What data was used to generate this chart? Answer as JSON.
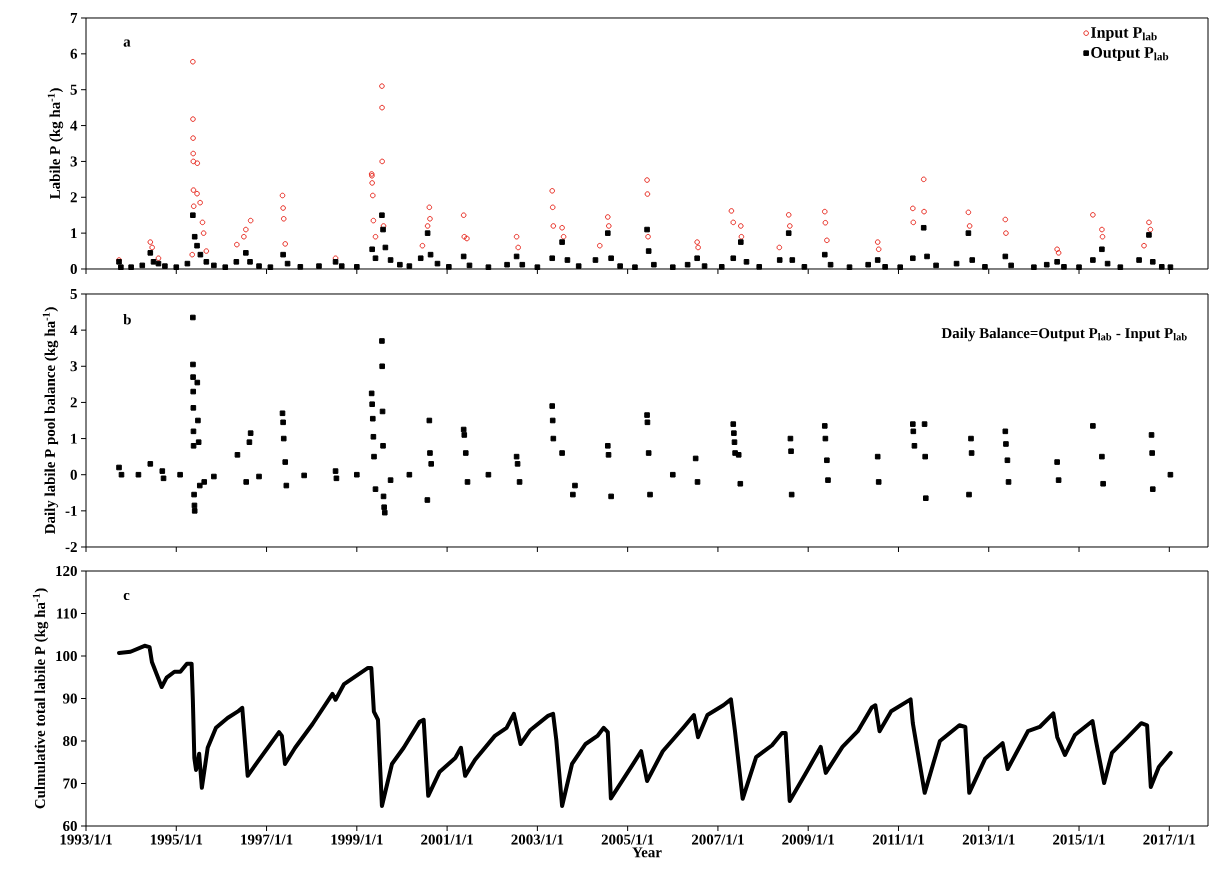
{
  "chart_data": [
    {
      "type": "scatter",
      "ylabel": "Labile P (kg ha$^{-1}$)",
      "annotations": [
        "a"
      ],
      "legend": "top right",
      "tick_labels": "y",
      "xlim": [
        "1993-01-01",
        "2017-11-10"
      ],
      "ylim": [
        0,
        7
      ],
      "yticks": [
        0,
        1,
        2,
        3,
        4,
        5,
        6,
        7
      ],
      "xticks": [
        {
          "value": "1993-01-01",
          "label": null
        },
        {
          "value": "1995-01-01",
          "label": null
        },
        {
          "value": "1997-01-01",
          "label": null
        },
        {
          "value": "1999-01-01",
          "label": null
        },
        {
          "value": "2001-01-01",
          "label": null
        },
        {
          "value": "2003-01-01",
          "label": null
        },
        {
          "value": "2005-01-01",
          "label": null
        },
        {
          "value": "2007-01-01",
          "label": null
        },
        {
          "value": "2009-01-01",
          "label": null
        },
        {
          "value": "2011-01-01",
          "label": null
        },
        {
          "value": "2013-01-01",
          "label": null
        },
        {
          "value": "2015-01-01",
          "label": null
        },
        {
          "value": "2017-01-01",
          "label": null
        }
      ],
      "series": [
        {
          "name": "Input P$_{lab}$",
          "color": "#e8281e",
          "marker": "circle",
          "x": [
            "1993-09-25",
            "1994-06-05",
            "1994-06-20",
            "1994-08-10",
            "1995-05-10",
            "1995-05-15",
            "1995-05-16",
            "1995-05-17",
            "1995-05-18",
            "1995-05-19",
            "1995-05-20",
            "1995-05-22",
            "1995-06-18",
            "1995-06-20",
            "1995-07-13",
            "1995-08-01",
            "1995-08-10",
            "1995-09-01",
            "1996-05-05",
            "1996-07-01",
            "1996-07-17",
            "1996-08-25",
            "1997-05-10",
            "1997-05-15",
            "1997-05-20",
            "1997-06-01",
            "1998-07-13",
            "1999-05-01",
            "1999-05-03",
            "1999-05-05",
            "1999-05-10",
            "1999-05-15",
            "1999-06-01",
            "1999-07-23",
            "1999-07-24",
            "1999-07-25",
            "1999-08-05",
            "2000-06-15",
            "2000-07-27",
            "2000-08-10",
            "2000-08-15",
            "2001-05-15",
            "2001-05-20",
            "2001-06-10",
            "2002-07-17",
            "2002-07-30",
            "2003-05-01",
            "2003-05-05",
            "2003-05-10",
            "2003-07-20",
            "2003-08-01",
            "2004-05-20",
            "2004-07-24",
            "2004-08-01",
            "2005-06-07",
            "2005-06-10",
            "2005-06-15",
            "2006-07-17",
            "2006-07-25",
            "2007-04-20",
            "2007-05-05",
            "2007-07-05",
            "2007-07-10",
            "2008-05-12",
            "2008-07-27",
            "2008-08-05",
            "2009-05-15",
            "2009-05-20",
            "2009-06-01",
            "2010-07-17",
            "2010-07-25",
            "2011-04-27",
            "2011-05-01",
            "2011-07-24",
            "2011-07-27",
            "2012-07-20",
            "2012-07-30",
            "2013-05-15",
            "2013-05-20",
            "2014-07-08",
            "2014-07-20",
            "2015-04-23",
            "2015-07-05",
            "2015-07-10",
            "2016-06-10",
            "2016-07-20",
            "2016-08-01"
          ],
          "values": [
            0.25,
            0.75,
            0.6,
            0.3,
            0.4,
            5.78,
            4.18,
            3.65,
            3.22,
            3.0,
            2.2,
            1.75,
            2.1,
            2.95,
            1.85,
            1.3,
            1.0,
            0.5,
            0.68,
            0.9,
            1.1,
            1.35,
            2.05,
            1.7,
            1.4,
            0.7,
            0.3,
            2.65,
            2.6,
            2.4,
            2.05,
            1.35,
            0.9,
            5.1,
            4.5,
            3.0,
            1.2,
            0.65,
            1.2,
            1.72,
            1.4,
            1.5,
            0.9,
            0.85,
            0.9,
            0.6,
            2.18,
            1.72,
            1.2,
            1.15,
            0.9,
            0.65,
            1.45,
            1.2,
            2.48,
            2.09,
            0.9,
            0.75,
            0.6,
            1.62,
            1.3,
            1.2,
            0.9,
            0.6,
            1.51,
            1.2,
            1.6,
            1.29,
            0.8,
            0.75,
            0.55,
            1.69,
            1.3,
            2.5,
            1.6,
            1.58,
            1.2,
            1.38,
            1.0,
            0.55,
            0.45,
            1.51,
            1.1,
            0.9,
            0.65,
            1.3,
            1.1
          ]
        },
        {
          "name": "Output P$_{lab}$",
          "color": "#000000",
          "marker": "square",
          "x": [
            "1993-09-25",
            "1993-10-10",
            "1994-01-01",
            "1994-04-01",
            "1994-06-05",
            "1994-07-01",
            "1994-08-10",
            "1994-10-01",
            "1995-01-01",
            "1995-04-01",
            "1995-05-15",
            "1995-05-30",
            "1995-06-18",
            "1995-07-15",
            "1995-09-01",
            "1995-11-01",
            "1996-02-01",
            "1996-05-01",
            "1996-07-17",
            "1996-08-20",
            "1996-11-01",
            "1997-02-01",
            "1997-05-15",
            "1997-06-20",
            "1997-10-01",
            "1998-03-01",
            "1998-07-13",
            "1998-09-01",
            "1999-01-01",
            "1999-05-05",
            "1999-06-01",
            "1999-07-23",
            "1999-08-01",
            "1999-08-20",
            "1999-10-01",
            "1999-12-15",
            "2000-03-01",
            "2000-06-01",
            "2000-07-27",
            "2000-08-20",
            "2000-10-15",
            "2001-01-15",
            "2001-05-15",
            "2001-07-01",
            "2001-12-01",
            "2002-05-01",
            "2002-07-17",
            "2002-09-01",
            "2003-01-01",
            "2003-05-01",
            "2003-07-20",
            "2003-09-01",
            "2003-12-01",
            "2004-04-15",
            "2004-07-24",
            "2004-08-20",
            "2004-11-01",
            "2005-03-01",
            "2005-06-07",
            "2005-06-20",
            "2005-08-01",
            "2006-01-01",
            "2006-05-01",
            "2006-07-17",
            "2006-09-15",
            "2007-02-01",
            "2007-05-05",
            "2007-07-05",
            "2007-08-20",
            "2007-12-01",
            "2008-05-15",
            "2008-07-27",
            "2008-08-25",
            "2008-12-01",
            "2009-05-15",
            "2009-07-01",
            "2009-12-01",
            "2010-05-01",
            "2010-07-17",
            "2010-09-15",
            "2011-01-15",
            "2011-04-27",
            "2011-07-24",
            "2011-08-20",
            "2011-11-01",
            "2012-04-15",
            "2012-07-20",
            "2012-08-20",
            "2012-12-01",
            "2013-05-15",
            "2013-07-01",
            "2014-01-01",
            "2014-04-15",
            "2014-07-08",
            "2014-09-01",
            "2015-01-01",
            "2015-04-23",
            "2015-07-05",
            "2015-08-20",
            "2015-12-01",
            "2016-05-01",
            "2016-07-20",
            "2016-08-20",
            "2016-11-01",
            "2017-01-10"
          ],
          "values": [
            0.2,
            0.05,
            0.05,
            0.1,
            0.45,
            0.2,
            0.15,
            0.08,
            0.05,
            0.15,
            1.5,
            0.9,
            0.65,
            0.4,
            0.2,
            0.1,
            0.05,
            0.2,
            0.45,
            0.2,
            0.08,
            0.05,
            0.4,
            0.15,
            0.06,
            0.08,
            0.2,
            0.08,
            0.06,
            0.55,
            0.3,
            1.5,
            1.1,
            0.6,
            0.25,
            0.12,
            0.08,
            0.3,
            1.0,
            0.4,
            0.15,
            0.06,
            0.35,
            0.1,
            0.05,
            0.12,
            0.35,
            0.12,
            0.05,
            0.3,
            0.75,
            0.25,
            0.08,
            0.25,
            1.0,
            0.3,
            0.08,
            0.05,
            1.1,
            0.5,
            0.12,
            0.05,
            0.12,
            0.3,
            0.08,
            0.06,
            0.3,
            0.75,
            0.2,
            0.06,
            0.25,
            1.0,
            0.25,
            0.06,
            0.4,
            0.12,
            0.05,
            0.12,
            0.25,
            0.06,
            0.05,
            0.3,
            1.15,
            0.35,
            0.1,
            0.15,
            1.0,
            0.25,
            0.06,
            0.35,
            0.1,
            0.05,
            0.12,
            0.2,
            0.06,
            0.05,
            0.25,
            0.55,
            0.15,
            0.05,
            0.25,
            0.95,
            0.2,
            0.06,
            0.05
          ]
        }
      ]
    },
    {
      "type": "scatter",
      "ylabel": "Daily labile P pool balance (kg ha$^{-1}$)",
      "annotations": [
        "b",
        "Daily Balance=Output P$_{lab}$ - Input P$_{lab}$"
      ],
      "tick_labels": "y",
      "color": "#000000",
      "marker": "square",
      "xlim": [
        "1993-01-01",
        "2017-11-10"
      ],
      "ylim": [
        -2,
        5
      ],
      "yticks": [
        -2,
        -1,
        0,
        1,
        2,
        3,
        4,
        5
      ],
      "xticks": [
        {
          "value": "1993-01-01",
          "label": null
        },
        {
          "value": "1995-01-01",
          "label": null
        },
        {
          "value": "1997-01-01",
          "label": null
        },
        {
          "value": "1999-01-01",
          "label": null
        },
        {
          "value": "2001-01-01",
          "label": null
        },
        {
          "value": "2003-01-01",
          "label": null
        },
        {
          "value": "2005-01-01",
          "label": null
        },
        {
          "value": "2007-01-01",
          "label": null
        },
        {
          "value": "2009-01-01",
          "label": null
        },
        {
          "value": "2011-01-01",
          "label": null
        },
        {
          "value": "2013-01-01",
          "label": null
        },
        {
          "value": "2015-01-01",
          "label": null
        },
        {
          "value": "2017-01-01",
          "label": null
        }
      ],
      "x": [
        "1993-09-25",
        "1993-10-15",
        "1994-03-01",
        "1994-06-05",
        "1994-09-10",
        "1994-09-20",
        "1995-02-01",
        "1995-05-15",
        "1995-05-16",
        "1995-05-17",
        "1995-05-18",
        "1995-05-19",
        "1995-05-20",
        "1995-05-21",
        "1995-05-25",
        "1995-05-28",
        "1995-05-30",
        "1995-06-20",
        "1995-06-25",
        "1995-07-01",
        "1995-07-10",
        "1995-08-15",
        "1995-11-01",
        "1996-05-10",
        "1996-07-20",
        "1996-08-15",
        "1996-08-25",
        "1996-11-01",
        "1997-05-10",
        "1997-05-15",
        "1997-05-20",
        "1997-06-01",
        "1997-06-10",
        "1997-11-01",
        "1998-07-13",
        "1998-07-20",
        "1999-01-01",
        "1999-05-01",
        "1999-05-05",
        "1999-05-10",
        "1999-05-15",
        "1999-05-20",
        "1999-06-01",
        "1999-07-23",
        "1999-07-25",
        "1999-07-28",
        "1999-08-01",
        "1999-08-05",
        "1999-08-10",
        "1999-08-15",
        "1999-10-01",
        "2000-03-01",
        "2000-07-25",
        "2000-08-10",
        "2000-08-15",
        "2000-08-25",
        "2001-05-15",
        "2001-05-20",
        "2001-06-01",
        "2001-06-15",
        "2001-12-01",
        "2002-07-17",
        "2002-07-25",
        "2002-08-10",
        "2003-05-01",
        "2003-05-05",
        "2003-05-10",
        "2003-07-20",
        "2003-10-15",
        "2003-11-01",
        "2004-07-24",
        "2004-07-30",
        "2004-08-20",
        "2005-06-07",
        "2005-06-10",
        "2005-06-20",
        "2005-07-01",
        "2006-01-01",
        "2006-07-05",
        "2006-07-20",
        "2007-05-05",
        "2007-05-10",
        "2007-05-15",
        "2007-05-20",
        "2007-06-18",
        "2007-07-01",
        "2008-08-10",
        "2008-08-15",
        "2008-08-20",
        "2009-05-15",
        "2009-05-20",
        "2009-06-01",
        "2009-06-10",
        "2010-07-17",
        "2010-07-25",
        "2011-04-27",
        "2011-05-01",
        "2011-05-10",
        "2011-07-31",
        "2011-08-05",
        "2011-08-10",
        "2012-07-25",
        "2012-08-10",
        "2012-08-15",
        "2013-05-15",
        "2013-05-20",
        "2013-06-01",
        "2013-06-10",
        "2014-07-08",
        "2014-07-20",
        "2015-04-23",
        "2015-07-05",
        "2015-07-15",
        "2016-08-10",
        "2016-08-15",
        "2016-08-20",
        "2017-01-10"
      ],
      "values": [
        0.2,
        0,
        0,
        0.3,
        0.1,
        -0.1,
        0,
        4.35,
        3.05,
        2.7,
        2.3,
        1.85,
        1.2,
        0.8,
        -0.55,
        -0.85,
        -1.0,
        2.55,
        1.5,
        0.9,
        -0.3,
        -0.2,
        -0.05,
        0.55,
        -0.2,
        0.9,
        1.15,
        -0.05,
        1.7,
        1.45,
        1.0,
        0.35,
        -0.3,
        -0.02,
        0.1,
        -0.1,
        0,
        2.25,
        1.95,
        1.55,
        1.05,
        0.5,
        -0.4,
        3.7,
        3.0,
        1.75,
        0.8,
        -0.6,
        -0.9,
        -1.05,
        -0.15,
        0,
        -0.7,
        1.5,
        0.6,
        0.3,
        1.25,
        1.1,
        0.6,
        -0.2,
        0,
        0.5,
        0.3,
        -0.2,
        1.9,
        1.5,
        1.0,
        0.6,
        -0.55,
        -0.3,
        0.8,
        0.55,
        -0.6,
        1.65,
        1.45,
        0.6,
        -0.55,
        0,
        0.45,
        -0.2,
        1.4,
        1.15,
        0.9,
        0.6,
        0.55,
        -0.25,
        1.0,
        0.65,
        -0.55,
        1.35,
        1.0,
        0.4,
        -0.15,
        0.5,
        -0.2,
        1.4,
        1.2,
        0.8,
        1.4,
        0.5,
        -0.65,
        -0.55,
        1.0,
        0.6,
        1.2,
        0.85,
        0.4,
        -0.2,
        0.35,
        -0.15,
        1.35,
        0.5,
        -0.25,
        1.1,
        0.6,
        -0.4,
        0
      ]
    },
    {
      "type": "line",
      "ylabel": "Culmulative total labile P (kg ha$^{-1}$)",
      "xlabel": "Year",
      "annotations": [
        "c"
      ],
      "color": "#000000",
      "line_style": "solid",
      "xlim": [
        "1993-01-01",
        "2017-11-10"
      ],
      "ylim": [
        60,
        120
      ],
      "yticks": [
        60,
        70,
        80,
        90,
        100,
        110,
        120
      ],
      "xticks": [
        {
          "value": "1993-01-01",
          "label": "1993/1/1"
        },
        {
          "value": "1995-01-01",
          "label": "1995/1/1"
        },
        {
          "value": "1997-01-01",
          "label": "1997/1/1"
        },
        {
          "value": "1999-01-01",
          "label": "1999/1/1"
        },
        {
          "value": "2001-01-01",
          "label": "2001/1/1"
        },
        {
          "value": "2003-01-01",
          "label": "2003/1/1"
        },
        {
          "value": "2005-01-01",
          "label": "2005/1/1"
        },
        {
          "value": "2007-01-01",
          "label": "2007/1/1"
        },
        {
          "value": "2009-01-01",
          "label": "2009/1/1"
        },
        {
          "value": "2011-01-01",
          "label": "2011/1/1"
        },
        {
          "value": "2013-01-01",
          "label": "2013/1/1"
        },
        {
          "value": "2015-01-01",
          "label": "2015/1/1"
        },
        {
          "value": "2017-01-01",
          "label": "2017/1/1"
        }
      ],
      "x": [
        "1993-09-25",
        "1993-12-27",
        "1994-04-20",
        "1994-05-30",
        "1994-06-18",
        "1994-09-05",
        "1994-10-15",
        "1994-12-17",
        "1995-02-03",
        "1995-03-28",
        "1995-05-05",
        "1995-05-15",
        "1995-05-27",
        "1995-06-10",
        "1995-07-05",
        "1995-07-27",
        "1995-09-12",
        "1995-11-18",
        "1996-02-20",
        "1996-05-11",
        "1996-06-18",
        "1996-08-01",
        "1996-10-20",
        "1997-04-12",
        "1997-05-05",
        "1997-05-30",
        "1997-08-20",
        "1998-01-08",
        "1998-06-18",
        "1998-07-13",
        "1998-09-20",
        "1999-04-01",
        "1999-04-28",
        "1999-05-19",
        "1999-06-21",
        "1999-07-23",
        "1999-10-12",
        "2000-01-15",
        "2000-05-23",
        "2000-06-25",
        "2000-08-01",
        "2000-10-31",
        "2001-03-08",
        "2001-04-23",
        "2001-05-27",
        "2001-08-15",
        "2002-01-22",
        "2002-04-27",
        "2002-06-25",
        "2002-08-18",
        "2002-11-06",
        "2003-03-28",
        "2003-05-08",
        "2003-06-03",
        "2003-07-20",
        "2003-10-08",
        "2004-01-26",
        "2004-05-01",
        "2004-06-21",
        "2004-07-24",
        "2004-08-18",
        "2005-01-30",
        "2005-04-20",
        "2005-06-07",
        "2005-10-12",
        "2006-04-01",
        "2006-06-21",
        "2006-07-24",
        "2006-10-08",
        "2007-02-14",
        "2007-04-16",
        "2007-05-19",
        "2007-07-20",
        "2007-11-06",
        "2008-03-14",
        "2008-06-03",
        "2008-07-02",
        "2008-08-04",
        "2008-12-24",
        "2009-04-12",
        "2009-05-23",
        "2009-10-05",
        "2010-02-06",
        "2010-05-30",
        "2010-06-28",
        "2010-08-01",
        "2010-11-03",
        "2011-04-09",
        "2011-04-27",
        "2011-08-01",
        "2011-12-02",
        "2012-05-08",
        "2012-06-25",
        "2012-07-27",
        "2012-12-02",
        "2013-04-23",
        "2013-06-03",
        "2013-11-14",
        "2014-02-17",
        "2014-06-07",
        "2014-07-09",
        "2014-09-09",
        "2014-11-28",
        "2015-04-20",
        "2015-05-15",
        "2015-07-23",
        "2015-09-24",
        "2016-01-30",
        "2016-05-19",
        "2016-07-05",
        "2016-08-04",
        "2016-10-08",
        "2017-01-12"
      ],
      "values": [
        100.7,
        101,
        102.4,
        102.1,
        98.6,
        92.7,
        94.9,
        96.3,
        96.3,
        98.2,
        98.2,
        89.7,
        76,
        73.2,
        77,
        69,
        78.4,
        83.1,
        85.4,
        86.9,
        87.8,
        71.8,
        75.1,
        82.1,
        81.2,
        74.6,
        78.4,
        84,
        91.1,
        89.7,
        93.4,
        97.2,
        97.2,
        86.9,
        85,
        64.7,
        74.6,
        78.4,
        84.5,
        85,
        67.1,
        72.7,
        76,
        78.4,
        71.8,
        75.6,
        81.2,
        83.1,
        86.4,
        79.3,
        82.6,
        85.9,
        86.4,
        80.3,
        64.7,
        74.6,
        79.3,
        81.2,
        83.1,
        82.1,
        66.5,
        73.9,
        77.6,
        70.6,
        77.6,
        83.3,
        86.1,
        80.9,
        86.1,
        88.4,
        89.8,
        82.3,
        66.4,
        76.2,
        79,
        81.9,
        81.9,
        65.9,
        73,
        78.6,
        72.5,
        78.6,
        82.3,
        87.9,
        88.4,
        82.3,
        87,
        89.8,
        84.2,
        67.8,
        80,
        83.7,
        83.3,
        67.8,
        75.8,
        79.5,
        73.4,
        82.3,
        83.3,
        86.5,
        80.9,
        76.7,
        81.4,
        84.7,
        80.5,
        70.1,
        77.2,
        80.9,
        84.2,
        83.7,
        69.2,
        73.9,
        77.2
      ]
    }
  ]
}
